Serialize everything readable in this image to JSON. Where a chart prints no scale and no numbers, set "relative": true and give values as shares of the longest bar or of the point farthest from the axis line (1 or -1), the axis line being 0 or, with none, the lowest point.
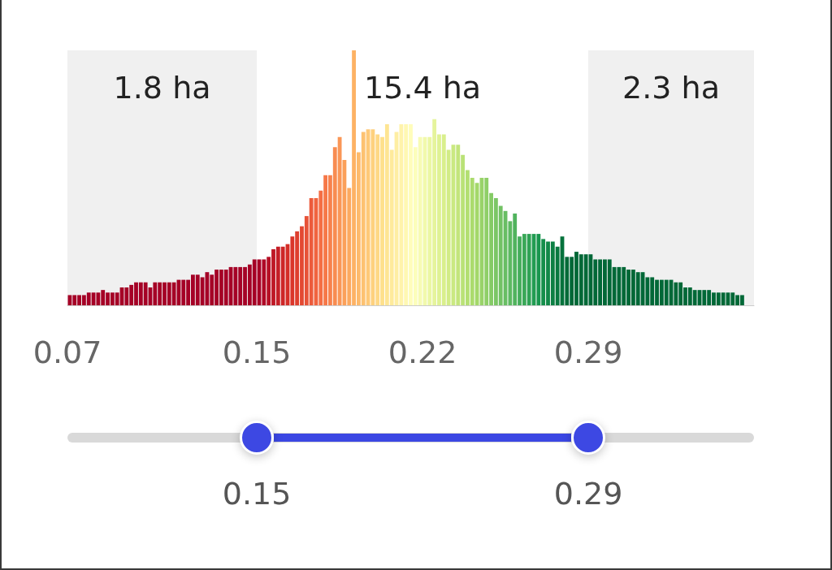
{
  "chart_data": {
    "type": "bar",
    "relative": true,
    "tick_labels": "x",
    "x": [
      0.071,
      0.073,
      0.075,
      0.077,
      0.079,
      0.081,
      0.083,
      0.085,
      0.087,
      0.089,
      0.091,
      0.093,
      0.095,
      0.097,
      0.099,
      0.101,
      0.103,
      0.105,
      0.107,
      0.109,
      0.111,
      0.113,
      0.115,
      0.117,
      0.119,
      0.121,
      0.123,
      0.125,
      0.127,
      0.129,
      0.131,
      0.133,
      0.135,
      0.137,
      0.139,
      0.141,
      0.143,
      0.145,
      0.147,
      0.149,
      0.151,
      0.153,
      0.155,
      0.157,
      0.159,
      0.161,
      0.163,
      0.165,
      0.167,
      0.169,
      0.171,
      0.173,
      0.175,
      0.177,
      0.179,
      0.181,
      0.183,
      0.185,
      0.187,
      0.189,
      0.191,
      0.193,
      0.195,
      0.197,
      0.199,
      0.201,
      0.203,
      0.205,
      0.207,
      0.209,
      0.211,
      0.213,
      0.215,
      0.217,
      0.219,
      0.221,
      0.223,
      0.225,
      0.227,
      0.229,
      0.231,
      0.233,
      0.235,
      0.237,
      0.239,
      0.241,
      0.243,
      0.245,
      0.247,
      0.249,
      0.251,
      0.253,
      0.255,
      0.257,
      0.259,
      0.261,
      0.263,
      0.265,
      0.267,
      0.269,
      0.271,
      0.273,
      0.275,
      0.277,
      0.279,
      0.281,
      0.283,
      0.285,
      0.287,
      0.289,
      0.291,
      0.293,
      0.295,
      0.297,
      0.299,
      0.301,
      0.303,
      0.305,
      0.307,
      0.309,
      0.311,
      0.313,
      0.315,
      0.317,
      0.319,
      0.321,
      0.323,
      0.325,
      0.327,
      0.329,
      0.331,
      0.333,
      0.335,
      0.337,
      0.339,
      0.341,
      0.343,
      0.345,
      0.347,
      0.349,
      0.351,
      0.353,
      0.355
    ],
    "values": [
      0.04,
      0.04,
      0.04,
      0.04,
      0.05,
      0.05,
      0.05,
      0.06,
      0.05,
      0.05,
      0.05,
      0.07,
      0.07,
      0.08,
      0.09,
      0.09,
      0.09,
      0.07,
      0.09,
      0.09,
      0.09,
      0.09,
      0.09,
      0.1,
      0.1,
      0.1,
      0.12,
      0.12,
      0.11,
      0.13,
      0.12,
      0.14,
      0.14,
      0.14,
      0.15,
      0.15,
      0.15,
      0.15,
      0.16,
      0.18,
      0.18,
      0.18,
      0.19,
      0.22,
      0.23,
      0.23,
      0.24,
      0.27,
      0.29,
      0.31,
      0.35,
      0.42,
      0.42,
      0.45,
      0.51,
      0.51,
      0.62,
      0.66,
      0.57,
      0.46,
      1,
      0.6,
      0.68,
      0.69,
      0.69,
      0.67,
      0.66,
      0.71,
      0.61,
      0.68,
      0.71,
      0.71,
      0.71,
      0.62,
      0.66,
      0.66,
      0.66,
      0.73,
      0.67,
      0.67,
      0.61,
      0.63,
      0.63,
      0.59,
      0.53,
      0.5,
      0.48,
      0.5,
      0.5,
      0.44,
      0.42,
      0.39,
      0.37,
      0.33,
      0.36,
      0.27,
      0.28,
      0.28,
      0.28,
      0.28,
      0.26,
      0.25,
      0.25,
      0.23,
      0.27,
      0.19,
      0.19,
      0.21,
      0.2,
      0.2,
      0.2,
      0.18,
      0.18,
      0.18,
      0.18,
      0.15,
      0.15,
      0.15,
      0.14,
      0.14,
      0.13,
      0.13,
      0.11,
      0.11,
      0.1,
      0.1,
      0.1,
      0.1,
      0.09,
      0.09,
      0.07,
      0.07,
      0.06,
      0.06,
      0.06,
      0.06,
      0.05,
      0.05,
      0.05,
      0.05,
      0.05,
      0.04,
      0.04
    ],
    "colors": [
      "#a50026",
      "#a50026",
      "#a50026",
      "#a50026",
      "#a50026",
      "#a50026",
      "#a50026",
      "#a50026",
      "#a50026",
      "#a50026",
      "#a50026",
      "#a50026",
      "#a50026",
      "#a50026",
      "#a50026",
      "#a50026",
      "#a50026",
      "#a50026",
      "#a50026",
      "#a50026",
      "#a50026",
      "#a50026",
      "#a50026",
      "#a50026",
      "#a50026",
      "#a50026",
      "#a50026",
      "#a50026",
      "#a50026",
      "#a50026",
      "#a50026",
      "#a50026",
      "#a50026",
      "#a50026",
      "#a50026",
      "#a50026",
      "#a50026",
      "#a50026",
      "#a50026",
      "#a50026",
      "#a70126",
      "#ae0926",
      "#b61026",
      "#be1826",
      "#c51f27",
      "#cd2627",
      "#d42e27",
      "#da362a",
      "#de3f2e",
      "#e34932",
      "#e75237",
      "#ec5b3b",
      "#f0643f",
      "#f46e44",
      "#f67848",
      "#f7824d",
      "#f88c51",
      "#fa9656",
      "#fba05a",
      "#fca95f",
      "#fdb264",
      "#fdba6b",
      "#fdc271",
      "#fec978",
      "#fed17e",
      "#fed885",
      "#fee08b",
      "#fee593",
      "#feea9b",
      "#feeea3",
      "#fff3ab",
      "#fff8b3",
      "#fffdbb",
      "#fcfebb",
      "#f7fbb4",
      "#f1f9ac",
      "#ebf7a3",
      "#e5f49c",
      "#dff294",
      "#d9ef8c",
      "#d2ec86",
      "#cae981",
      "#c3e57c",
      "#bae277",
      "#b3df72",
      "#abdb6d",
      "#a3d86a",
      "#99d369",
      "#8fcf67",
      "#85cb66",
      "#7bc665",
      "#72c264",
      "#68be63",
      "#5db961",
      "#51b35e",
      "#45ad5b",
      "#3aa858",
      "#2fa255",
      "#229c52",
      "#19964f",
      "#158f4b",
      "#118848",
      "#0d8044",
      "#097940",
      "#05723c",
      "#016a38",
      "#006837",
      "#006837",
      "#006837",
      "#006837",
      "#006837",
      "#006837",
      "#006837",
      "#006837",
      "#006837",
      "#006837",
      "#006837",
      "#006837",
      "#006837",
      "#006837",
      "#006837",
      "#006837",
      "#006837",
      "#006837",
      "#006837",
      "#006837",
      "#006837",
      "#006837",
      "#006837",
      "#006837",
      "#006837",
      "#006837",
      "#006837",
      "#006837",
      "#006837",
      "#006837",
      "#006837",
      "#006837",
      "#006837",
      "#006837",
      "#006837",
      "#006837",
      "#006837"
    ],
    "xlim": [
      0.07,
      0.36
    ],
    "xticks": [
      0.07,
      0.15,
      0.22,
      0.29
    ],
    "bands": [
      {
        "axis": "x",
        "from": 0.07,
        "to": 0.15,
        "label": "1.8 ha",
        "color": "#f0f0f0"
      },
      {
        "axis": "x",
        "from": 0.29,
        "to": 0.36,
        "label": "2.3 ha",
        "color": "#f0f0f0"
      }
    ],
    "annotations": [
      "15.4 ha",
      "0.15",
      "0.29"
    ]
  }
}
